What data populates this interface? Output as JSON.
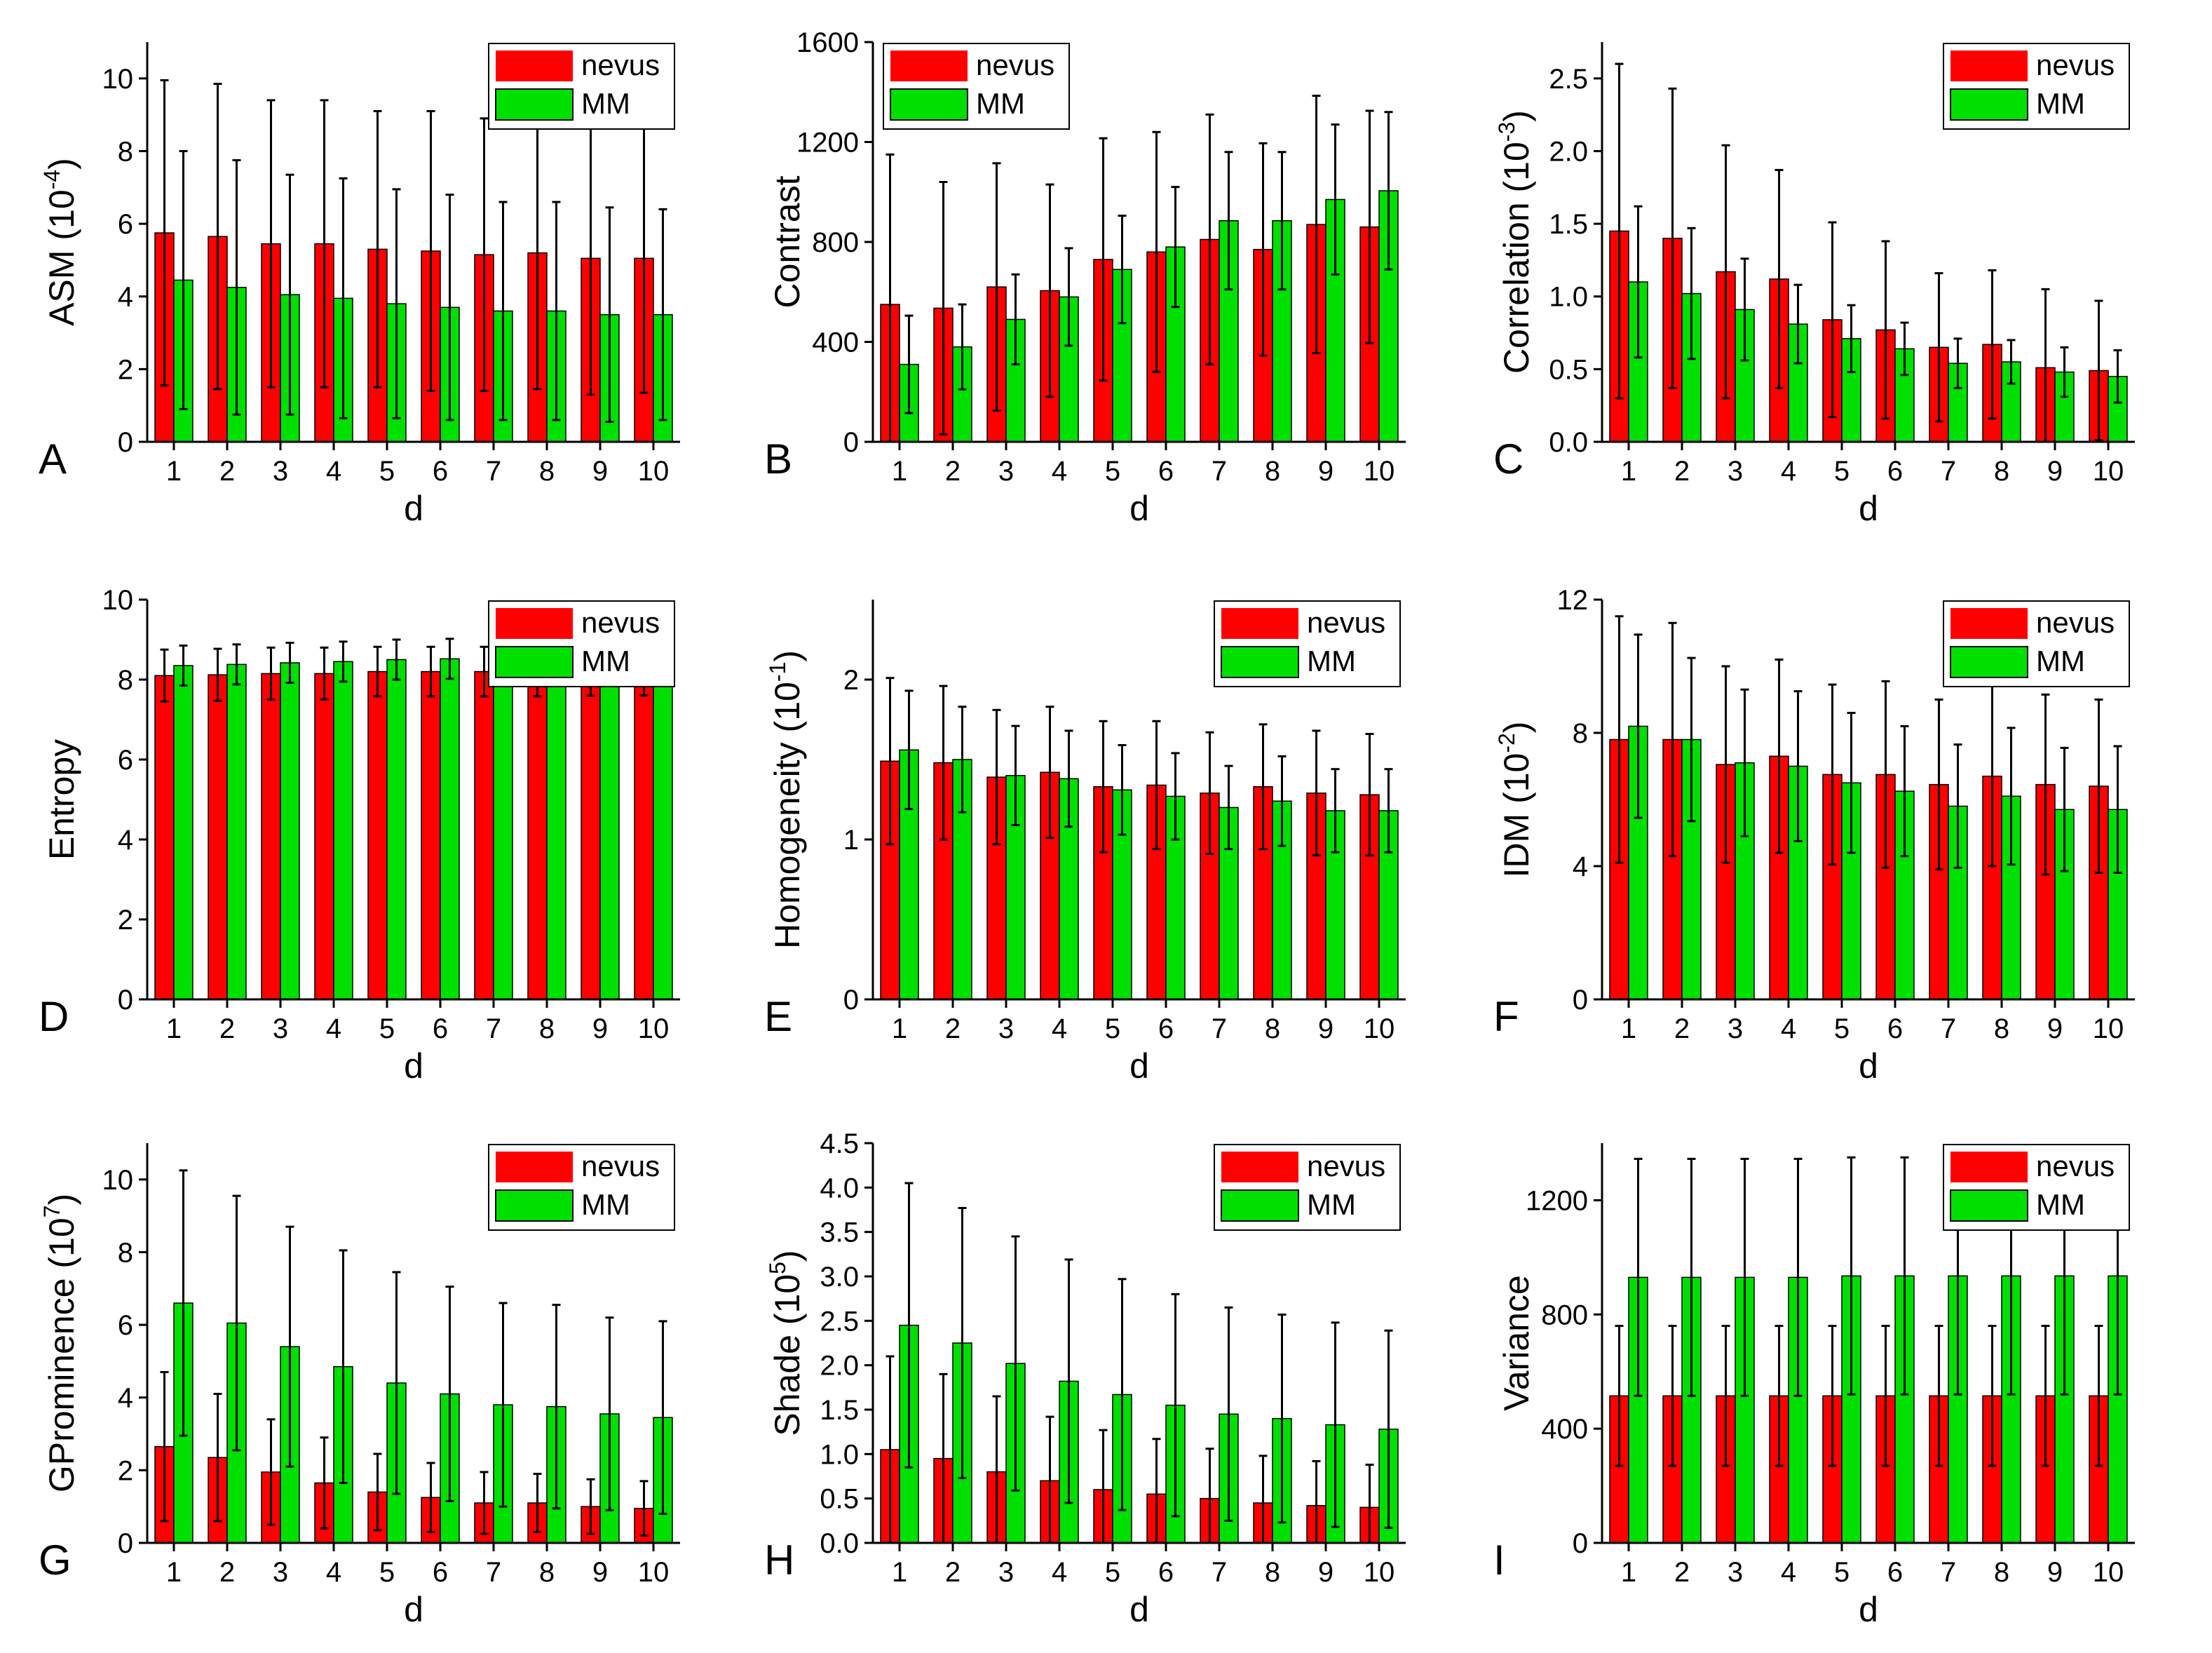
{
  "colors": {
    "nevus": "#ff0000",
    "mm": "#00e000",
    "axis": "#000000",
    "background": "#ffffff"
  },
  "chart_data": [
    {
      "type": "bar",
      "panel": "A",
      "title": "",
      "xlabel": "d",
      "ylabel": "ASM (10",
      "ylabel_exp": "-4",
      "ylabel_close": ")",
      "categories": [
        "1",
        "2",
        "3",
        "4",
        "5",
        "6",
        "7",
        "8",
        "9",
        "10"
      ],
      "ylim": [
        0,
        11
      ],
      "yticks": [
        {
          "v": 0,
          "label": "0"
        },
        {
          "v": 2,
          "label": "2"
        },
        {
          "v": 4,
          "label": "4"
        },
        {
          "v": 6,
          "label": "6"
        },
        {
          "v": 8,
          "label": "8"
        },
        {
          "v": 10,
          "label": "10"
        }
      ],
      "legend": "top-right",
      "series": [
        {
          "name": "nevus",
          "values": [
            5.75,
            5.65,
            5.45,
            5.45,
            5.3,
            5.25,
            5.15,
            5.2,
            5.05,
            5.05
          ],
          "errors": [
            4.2,
            4.2,
            3.95,
            3.95,
            3.8,
            3.85,
            3.75,
            3.75,
            3.75,
            3.7
          ]
        },
        {
          "name": "MM",
          "values": [
            4.45,
            4.25,
            4.05,
            3.95,
            3.8,
            3.7,
            3.6,
            3.6,
            3.5,
            3.5
          ],
          "errors": [
            3.55,
            3.5,
            3.3,
            3.3,
            3.15,
            3.1,
            3.0,
            3.0,
            2.95,
            2.9
          ]
        }
      ]
    },
    {
      "type": "bar",
      "panel": "B",
      "title": "",
      "xlabel": "d",
      "ylabel": "Contrast",
      "ylabel_exp": "",
      "ylabel_close": "",
      "categories": [
        "1",
        "2",
        "3",
        "4",
        "5",
        "6",
        "7",
        "8",
        "9",
        "10"
      ],
      "ylim": [
        0,
        1600
      ],
      "yticks": [
        {
          "v": 0,
          "label": "0"
        },
        {
          "v": 400,
          "label": "400"
        },
        {
          "v": 800,
          "label": "800"
        },
        {
          "v": 1200,
          "label": "1200"
        },
        {
          "v": 1600,
          "label": "1600"
        }
      ],
      "legend": "top-left",
      "series": [
        {
          "name": "nevus",
          "values": [
            550,
            535,
            620,
            605,
            730,
            760,
            810,
            770,
            870,
            860
          ],
          "errors": [
            600,
            505,
            495,
            425,
            485,
            480,
            500,
            425,
            515,
            465
          ]
        },
        {
          "name": "MM",
          "values": [
            310,
            380,
            490,
            580,
            690,
            780,
            885,
            885,
            970,
            1005
          ],
          "errors": [
            195,
            170,
            180,
            195,
            215,
            240,
            275,
            275,
            300,
            315
          ]
        }
      ]
    },
    {
      "type": "bar",
      "panel": "C",
      "title": "",
      "xlabel": "d",
      "ylabel": "Correlation (10",
      "ylabel_exp": "-3",
      "ylabel_close": ")",
      "categories": [
        "1",
        "2",
        "3",
        "4",
        "5",
        "6",
        "7",
        "8",
        "9",
        "10"
      ],
      "ylim": [
        0,
        2.75
      ],
      "yticks": [
        {
          "v": 0,
          "label": "0.0"
        },
        {
          "v": 0.5,
          "label": "0.5"
        },
        {
          "v": 1.0,
          "label": "1.0"
        },
        {
          "v": 1.5,
          "label": "1.5"
        },
        {
          "v": 2.0,
          "label": "2.0"
        },
        {
          "v": 2.5,
          "label": "2.5"
        }
      ],
      "legend": "top-right",
      "series": [
        {
          "name": "nevus",
          "values": [
            1.45,
            1.4,
            1.17,
            1.12,
            0.84,
            0.77,
            0.65,
            0.67,
            0.51,
            0.49
          ],
          "errors": [
            1.15,
            1.03,
            0.87,
            0.75,
            0.67,
            0.61,
            0.51,
            0.51,
            0.54,
            0.48
          ]
        },
        {
          "name": "MM",
          "values": [
            1.1,
            1.02,
            0.91,
            0.81,
            0.71,
            0.64,
            0.54,
            0.55,
            0.48,
            0.45
          ],
          "errors": [
            0.52,
            0.45,
            0.35,
            0.27,
            0.23,
            0.18,
            0.17,
            0.15,
            0.17,
            0.18
          ]
        }
      ]
    },
    {
      "type": "bar",
      "panel": "D",
      "title": "",
      "xlabel": "d",
      "ylabel": "Entropy",
      "ylabel_exp": "",
      "ylabel_close": "",
      "categories": [
        "1",
        "2",
        "3",
        "4",
        "5",
        "6",
        "7",
        "8",
        "9",
        "10"
      ],
      "ylim": [
        0,
        10
      ],
      "yticks": [
        {
          "v": 0,
          "label": "0"
        },
        {
          "v": 2,
          "label": "2"
        },
        {
          "v": 4,
          "label": "4"
        },
        {
          "v": 6,
          "label": "6"
        },
        {
          "v": 8,
          "label": "8"
        },
        {
          "v": 10,
          "label": "10"
        }
      ],
      "legend": "top-right",
      "series": [
        {
          "name": "nevus",
          "values": [
            8.1,
            8.12,
            8.15,
            8.15,
            8.2,
            8.2,
            8.2,
            8.2,
            8.22,
            8.22
          ],
          "errors": [
            0.65,
            0.65,
            0.65,
            0.65,
            0.62,
            0.62,
            0.62,
            0.62,
            0.62,
            0.62
          ]
        },
        {
          "name": "MM",
          "values": [
            8.35,
            8.38,
            8.42,
            8.45,
            8.5,
            8.52,
            8.55,
            8.55,
            8.58,
            8.6
          ],
          "errors": [
            0.5,
            0.5,
            0.5,
            0.5,
            0.5,
            0.5,
            0.5,
            0.5,
            0.5,
            0.5
          ]
        }
      ]
    },
    {
      "type": "bar",
      "panel": "E",
      "title": "",
      "xlabel": "d",
      "ylabel": "Homogeneity (10",
      "ylabel_exp": "-1",
      "ylabel_close": ")",
      "categories": [
        "1",
        "2",
        "3",
        "4",
        "5",
        "6",
        "7",
        "8",
        "9",
        "10"
      ],
      "ylim": [
        0,
        2.5
      ],
      "yticks": [
        {
          "v": 0,
          "label": "0"
        },
        {
          "v": 1,
          "label": "1"
        },
        {
          "v": 2,
          "label": "2"
        }
      ],
      "legend": "top-right",
      "series": [
        {
          "name": "nevus",
          "values": [
            1.49,
            1.48,
            1.39,
            1.42,
            1.33,
            1.34,
            1.29,
            1.33,
            1.29,
            1.28
          ],
          "errors": [
            0.52,
            0.48,
            0.42,
            0.41,
            0.41,
            0.4,
            0.38,
            0.39,
            0.39,
            0.38
          ]
        },
        {
          "name": "MM",
          "values": [
            1.56,
            1.5,
            1.4,
            1.38,
            1.31,
            1.27,
            1.2,
            1.24,
            1.18,
            1.18
          ],
          "errors": [
            0.37,
            0.33,
            0.31,
            0.3,
            0.28,
            0.27,
            0.26,
            0.28,
            0.26,
            0.26
          ]
        }
      ]
    },
    {
      "type": "bar",
      "panel": "F",
      "title": "",
      "xlabel": "d",
      "ylabel": "IDM (10",
      "ylabel_exp": "-2",
      "ylabel_close": ")",
      "categories": [
        "1",
        "2",
        "3",
        "4",
        "5",
        "6",
        "7",
        "8",
        "9",
        "10"
      ],
      "ylim": [
        0,
        12
      ],
      "yticks": [
        {
          "v": 0,
          "label": "0"
        },
        {
          "v": 4,
          "label": "4"
        },
        {
          "v": 8,
          "label": "8"
        },
        {
          "v": 12,
          "label": "12"
        }
      ],
      "legend": "top-right",
      "series": [
        {
          "name": "nevus",
          "values": [
            7.8,
            7.8,
            7.05,
            7.3,
            6.75,
            6.75,
            6.45,
            6.7,
            6.45,
            6.4
          ],
          "errors": [
            3.7,
            3.5,
            2.95,
            2.9,
            2.7,
            2.8,
            2.55,
            2.7,
            2.7,
            2.6
          ]
        },
        {
          "name": "MM",
          "values": [
            8.2,
            7.8,
            7.1,
            7.0,
            6.5,
            6.25,
            5.8,
            6.1,
            5.7,
            5.7
          ],
          "errors": [
            2.75,
            2.45,
            2.2,
            2.25,
            2.1,
            1.95,
            1.85,
            2.05,
            1.85,
            1.9
          ]
        }
      ]
    },
    {
      "type": "bar",
      "panel": "G",
      "title": "",
      "xlabel": "d",
      "ylabel": "GProminence (10",
      "ylabel_exp": "7",
      "ylabel_close": ")",
      "categories": [
        "1",
        "2",
        "3",
        "4",
        "5",
        "6",
        "7",
        "8",
        "9",
        "10"
      ],
      "ylim": [
        0,
        11
      ],
      "yticks": [
        {
          "v": 0,
          "label": "0"
        },
        {
          "v": 2,
          "label": "2"
        },
        {
          "v": 4,
          "label": "4"
        },
        {
          "v": 6,
          "label": "6"
        },
        {
          "v": 8,
          "label": "8"
        },
        {
          "v": 10,
          "label": "10"
        }
      ],
      "legend": "top-right",
      "series": [
        {
          "name": "nevus",
          "values": [
            2.65,
            2.35,
            1.95,
            1.65,
            1.4,
            1.25,
            1.1,
            1.1,
            1.0,
            0.95
          ],
          "errors": [
            2.05,
            1.75,
            1.45,
            1.25,
            1.05,
            0.95,
            0.85,
            0.8,
            0.75,
            0.75
          ]
        },
        {
          "name": "MM",
          "values": [
            6.6,
            6.05,
            5.4,
            4.85,
            4.4,
            4.1,
            3.8,
            3.75,
            3.55,
            3.45
          ],
          "errors": [
            3.65,
            3.5,
            3.3,
            3.2,
            3.05,
            2.95,
            2.8,
            2.8,
            2.65,
            2.65
          ]
        }
      ]
    },
    {
      "type": "bar",
      "panel": "H",
      "title": "",
      "xlabel": "d",
      "ylabel": "Shade (10",
      "ylabel_exp": "5",
      "ylabel_close": ")",
      "categories": [
        "1",
        "2",
        "3",
        "4",
        "5",
        "6",
        "7",
        "8",
        "9",
        "10"
      ],
      "ylim": [
        0,
        4.5
      ],
      "yticks": [
        {
          "v": 0,
          "label": "0.0"
        },
        {
          "v": 0.5,
          "label": "0.5"
        },
        {
          "v": 1.0,
          "label": "1.0"
        },
        {
          "v": 1.5,
          "label": "1.5"
        },
        {
          "v": 2.0,
          "label": "2.0"
        },
        {
          "v": 2.5,
          "label": "2.5"
        },
        {
          "v": 3.0,
          "label": "3.0"
        },
        {
          "v": 3.5,
          "label": "3.5"
        },
        {
          "v": 4.0,
          "label": "4.0"
        },
        {
          "v": 4.5,
          "label": "4.5"
        }
      ],
      "legend": "top-right",
      "series": [
        {
          "name": "nevus",
          "values": [
            1.05,
            0.95,
            0.8,
            0.7,
            0.6,
            0.55,
            0.5,
            0.45,
            0.42,
            0.4
          ],
          "errors": [
            1.05,
            0.95,
            0.85,
            0.72,
            0.67,
            0.62,
            0.56,
            0.53,
            0.5,
            0.48
          ]
        },
        {
          "name": "MM",
          "values": [
            2.45,
            2.25,
            2.02,
            1.82,
            1.67,
            1.55,
            1.45,
            1.4,
            1.33,
            1.28
          ],
          "errors": [
            1.6,
            1.52,
            1.43,
            1.37,
            1.3,
            1.25,
            1.2,
            1.17,
            1.15,
            1.11
          ]
        }
      ]
    },
    {
      "type": "bar",
      "panel": "I",
      "title": "",
      "xlabel": "d",
      "ylabel": "Variance",
      "ylabel_exp": "",
      "ylabel_close": "",
      "categories": [
        "1",
        "2",
        "3",
        "4",
        "5",
        "6",
        "7",
        "8",
        "9",
        "10"
      ],
      "ylim": [
        0,
        1400
      ],
      "yticks": [
        {
          "v": 0,
          "label": "0"
        },
        {
          "v": 400,
          "label": "400"
        },
        {
          "v": 800,
          "label": "800"
        },
        {
          "v": 1200,
          "label": "1200"
        }
      ],
      "legend": "top-right",
      "series": [
        {
          "name": "nevus",
          "values": [
            515,
            515,
            515,
            515,
            515,
            515,
            515,
            515,
            515,
            515
          ],
          "errors": [
            245,
            245,
            245,
            245,
            245,
            245,
            245,
            245,
            245,
            245
          ]
        },
        {
          "name": "MM",
          "values": [
            930,
            930,
            930,
            930,
            935,
            935,
            935,
            935,
            935,
            935
          ],
          "errors": [
            415,
            415,
            415,
            415,
            415,
            415,
            415,
            415,
            415,
            415
          ]
        }
      ]
    }
  ]
}
